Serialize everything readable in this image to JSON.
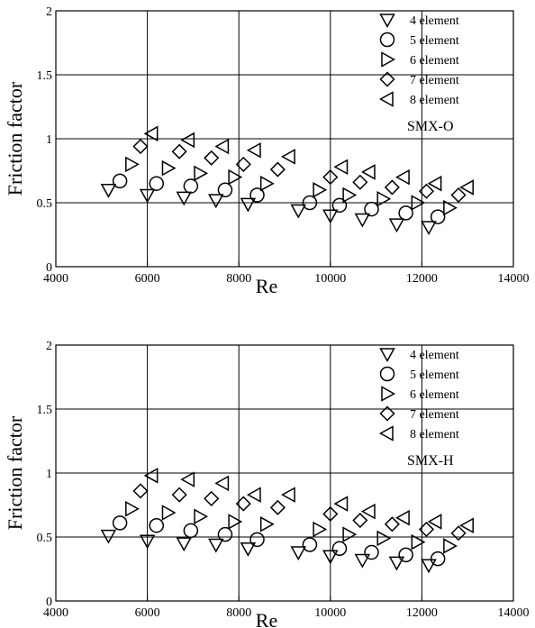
{
  "chart_data": [
    {
      "type": "scatter",
      "xlabel": "Re",
      "ylabel": "Friction factor",
      "xlim": [
        4000,
        14000
      ],
      "ylim": [
        0,
        2
      ],
      "xticks": [
        "4000",
        "6000",
        "8000",
        "10000",
        "12000",
        "14000"
      ],
      "yticks": [
        "0",
        "0.5",
        "1",
        "1.5",
        "2"
      ],
      "grid": true,
      "legend_position": "top-right",
      "annotation": "SMX-O",
      "series": [
        {
          "name": "4 element",
          "marker": "triangle-down",
          "points": [
            [
              5150,
              0.6
            ],
            [
              6000,
              0.56
            ],
            [
              6800,
              0.54
            ],
            [
              7500,
              0.52
            ],
            [
              8200,
              0.49
            ],
            [
              9300,
              0.44
            ],
            [
              10000,
              0.4
            ],
            [
              10700,
              0.37
            ],
            [
              11450,
              0.33
            ],
            [
              12150,
              0.31
            ]
          ]
        },
        {
          "name": "5 element",
          "marker": "circle",
          "points": [
            [
              5400,
              0.67
            ],
            [
              6200,
              0.65
            ],
            [
              6950,
              0.63
            ],
            [
              7700,
              0.6
            ],
            [
              8400,
              0.56
            ],
            [
              9550,
              0.5
            ],
            [
              10200,
              0.48
            ],
            [
              10900,
              0.45
            ],
            [
              11650,
              0.42
            ],
            [
              12350,
              0.39
            ]
          ]
        },
        {
          "name": "6 element",
          "marker": "triangle-right",
          "points": [
            [
              5650,
              0.8
            ],
            [
              6450,
              0.77
            ],
            [
              7150,
              0.73
            ],
            [
              7900,
              0.7
            ],
            [
              8600,
              0.65
            ],
            [
              9750,
              0.6
            ],
            [
              10400,
              0.56
            ],
            [
              11150,
              0.53
            ],
            [
              11900,
              0.5
            ],
            [
              12600,
              0.46
            ]
          ]
        },
        {
          "name": "7 element",
          "marker": "diamond",
          "points": [
            [
              5850,
              0.94
            ],
            [
              6700,
              0.9
            ],
            [
              7400,
              0.85
            ],
            [
              8100,
              0.8
            ],
            [
              8850,
              0.76
            ],
            [
              10000,
              0.7
            ],
            [
              10650,
              0.66
            ],
            [
              11350,
              0.62
            ],
            [
              12100,
              0.59
            ],
            [
              12800,
              0.56
            ]
          ]
        },
        {
          "name": "8 element",
          "marker": "triangle-left",
          "points": [
            [
              6100,
              1.04
            ],
            [
              6900,
              0.99
            ],
            [
              7650,
              0.94
            ],
            [
              8350,
              0.91
            ],
            [
              9100,
              0.86
            ],
            [
              10250,
              0.78
            ],
            [
              10850,
              0.74
            ],
            [
              11600,
              0.7
            ],
            [
              12300,
              0.65
            ],
            [
              13000,
              0.62
            ]
          ]
        }
      ]
    },
    {
      "type": "scatter",
      "xlabel": "Re",
      "ylabel": "Friction factor",
      "xlim": [
        4000,
        14000
      ],
      "ylim": [
        0,
        2
      ],
      "xticks": [
        "4000",
        "6000",
        "8000",
        "10000",
        "12000",
        "14000"
      ],
      "yticks": [
        "0",
        "0.5",
        "1",
        "1.5",
        "2"
      ],
      "grid": true,
      "legend_position": "top-right",
      "annotation": "SMX-H",
      "series": [
        {
          "name": "4 element",
          "marker": "triangle-down",
          "points": [
            [
              5150,
              0.51
            ],
            [
              6000,
              0.47
            ],
            [
              6800,
              0.45
            ],
            [
              7500,
              0.44
            ],
            [
              8200,
              0.41
            ],
            [
              9300,
              0.38
            ],
            [
              10000,
              0.35
            ],
            [
              10700,
              0.32
            ],
            [
              11450,
              0.3
            ],
            [
              12150,
              0.28
            ]
          ]
        },
        {
          "name": "5 element",
          "marker": "circle",
          "points": [
            [
              5400,
              0.61
            ],
            [
              6200,
              0.59
            ],
            [
              6950,
              0.55
            ],
            [
              7700,
              0.52
            ],
            [
              8400,
              0.48
            ],
            [
              9550,
              0.44
            ],
            [
              10200,
              0.41
            ],
            [
              10900,
              0.38
            ],
            [
              11650,
              0.36
            ],
            [
              12350,
              0.33
            ]
          ]
        },
        {
          "name": "6 element",
          "marker": "triangle-right",
          "points": [
            [
              5650,
              0.72
            ],
            [
              6450,
              0.69
            ],
            [
              7150,
              0.66
            ],
            [
              7900,
              0.62
            ],
            [
              8600,
              0.6
            ],
            [
              9750,
              0.56
            ],
            [
              10400,
              0.52
            ],
            [
              11150,
              0.49
            ],
            [
              11900,
              0.46
            ],
            [
              12600,
              0.43
            ]
          ]
        },
        {
          "name": "7 element",
          "marker": "diamond",
          "points": [
            [
              5850,
              0.86
            ],
            [
              6700,
              0.83
            ],
            [
              7400,
              0.8
            ],
            [
              8100,
              0.76
            ],
            [
              8850,
              0.73
            ],
            [
              10000,
              0.68
            ],
            [
              10650,
              0.63
            ],
            [
              11350,
              0.6
            ],
            [
              12100,
              0.56
            ],
            [
              12800,
              0.53
            ]
          ]
        },
        {
          "name": "8 element",
          "marker": "triangle-left",
          "points": [
            [
              6100,
              0.98
            ],
            [
              6900,
              0.95
            ],
            [
              7650,
              0.92
            ],
            [
              8350,
              0.83
            ],
            [
              9100,
              0.83
            ],
            [
              10250,
              0.76
            ],
            [
              10850,
              0.7
            ],
            [
              11600,
              0.65
            ],
            [
              12300,
              0.62
            ],
            [
              13000,
              0.59
            ]
          ]
        }
      ]
    }
  ]
}
